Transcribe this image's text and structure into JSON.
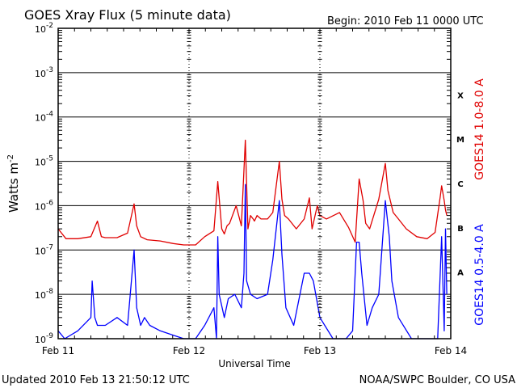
{
  "title": "GOES Xray Flux (5 minute data)",
  "begin_label": "Begin:  2010 Feb 11 0000 UTC",
  "updated_label": "Updated 2010 Feb 13 21:50:12 UTC",
  "credit_label": "NOAA/SWPC Boulder, CO USA",
  "colors": {
    "long_channel": "#e00000",
    "short_channel": "#0000ff",
    "axes": "#000000"
  },
  "chart_data": {
    "type": "line",
    "title": "GOES Xray Flux (5 minute data)",
    "xlabel": "Universal Time",
    "ylabel_base": "Watts m",
    "ylabel_sup": "-2",
    "yscale": "log",
    "ylim": [
      1e-09,
      0.01
    ],
    "xlim_days": [
      0,
      3
    ],
    "x_ticks": [
      {
        "day": 0,
        "label": "Feb 11"
      },
      {
        "day": 1,
        "label": "Feb 12"
      },
      {
        "day": 2,
        "label": "Feb 13"
      },
      {
        "day": 3,
        "label": "Feb 14"
      }
    ],
    "y_ticks": [
      {
        "exp": -9,
        "label_base": "10",
        "label_exp": "-9"
      },
      {
        "exp": -8,
        "label_base": "10",
        "label_exp": "-8"
      },
      {
        "exp": -7,
        "label_base": "10",
        "label_exp": "-7"
      },
      {
        "exp": -6,
        "label_base": "10",
        "label_exp": "-6"
      },
      {
        "exp": -5,
        "label_base": "10",
        "label_exp": "-5"
      },
      {
        "exp": -4,
        "label_base": "10",
        "label_exp": "-4"
      },
      {
        "exp": -3,
        "label_base": "10",
        "label_exp": "-3"
      },
      {
        "exp": -2,
        "label_base": "10",
        "label_exp": "-2"
      }
    ],
    "flare_classes": [
      {
        "label": "A",
        "exp": -8
      },
      {
        "label": "B",
        "exp": -7
      },
      {
        "label": "C",
        "exp": -6
      },
      {
        "label": "M",
        "exp": -5
      },
      {
        "label": "X",
        "exp": -4
      }
    ],
    "grid": true,
    "series": [
      {
        "name": "GOES14 1.0-8.0 A",
        "color": "#e00000",
        "x_days": [
          0,
          0.06,
          0.15,
          0.25,
          0.3,
          0.33,
          0.36,
          0.45,
          0.53,
          0.58,
          0.6,
          0.63,
          0.68,
          0.78,
          0.88,
          0.96,
          1.05,
          1.12,
          1.19,
          1.22,
          1.25,
          1.27,
          1.29,
          1.31,
          1.36,
          1.4,
          1.43,
          1.45,
          1.47,
          1.49,
          1.5,
          1.52,
          1.55,
          1.6,
          1.64,
          1.69,
          1.71,
          1.73,
          1.76,
          1.82,
          1.88,
          1.92,
          1.94,
          1.98,
          2.0,
          2.05,
          2.15,
          2.22,
          2.27,
          2.3,
          2.33,
          2.35,
          2.38,
          2.45,
          2.5,
          2.52,
          2.56,
          2.6,
          2.66,
          2.74,
          2.82,
          2.88,
          2.92,
          2.93,
          2.95,
          2.96,
          2.97
        ],
        "y": [
          3e-07,
          1.8e-07,
          1.8e-07,
          2e-07,
          4.5e-07,
          2e-07,
          1.9e-07,
          1.9e-07,
          2.4e-07,
          1.1e-06,
          3.5e-07,
          2e-07,
          1.7e-07,
          1.6e-07,
          1.4e-07,
          1.3e-07,
          1.3e-07,
          2e-07,
          2.7e-07,
          3.5e-06,
          3e-07,
          2.3e-07,
          3.5e-07,
          4e-07,
          1e-06,
          3.5e-07,
          3e-05,
          3e-07,
          6e-07,
          5e-07,
          4.5e-07,
          6e-07,
          5e-07,
          5e-07,
          7e-07,
          1e-05,
          1.4e-06,
          6e-07,
          5e-07,
          3e-07,
          5e-07,
          1.5e-06,
          3e-07,
          1e-06,
          6e-07,
          5e-07,
          7e-07,
          3.2e-07,
          1.5e-07,
          4e-06,
          1.3e-06,
          4e-07,
          3e-07,
          1.4e-06,
          9e-06,
          2.2e-06,
          7e-07,
          5e-07,
          3e-07,
          2e-07,
          1.8e-07,
          2.5e-07,
          1.6e-06,
          2.8e-06,
          1.3e-06,
          8e-07,
          6e-07
        ]
      },
      {
        "name": "GOES14 0.5-4.0 A",
        "color": "#0000ff",
        "x_days": [
          0,
          0.05,
          0.15,
          0.25,
          0.26,
          0.28,
          0.3,
          0.36,
          0.45,
          0.53,
          0.58,
          0.6,
          0.63,
          0.66,
          0.7,
          0.78,
          0.88,
          0.96,
          1.05,
          1.12,
          1.19,
          1.21,
          1.22,
          1.23,
          1.27,
          1.3,
          1.35,
          1.4,
          1.42,
          1.43,
          1.44,
          1.47,
          1.52,
          1.6,
          1.64,
          1.69,
          1.71,
          1.74,
          1.8,
          1.88,
          1.92,
          1.95,
          2.0,
          2.1,
          2.2,
          2.25,
          2.28,
          2.3,
          2.32,
          2.36,
          2.4,
          2.45,
          2.5,
          2.53,
          2.55,
          2.6,
          2.7,
          2.8,
          2.9,
          2.93,
          2.95,
          2.96,
          2.97
        ],
        "y": [
          1.5e-09,
          1e-09,
          1.5e-09,
          3e-09,
          2e-08,
          3e-09,
          2e-09,
          2e-09,
          3e-09,
          2e-09,
          1e-07,
          5e-09,
          2e-09,
          3e-09,
          2e-09,
          1.5e-09,
          1.2e-09,
          1e-09,
          1e-09,
          2e-09,
          5e-09,
          1e-09,
          2e-07,
          1e-08,
          3e-09,
          8e-09,
          1e-08,
          5e-09,
          3e-08,
          3e-06,
          2e-08,
          1e-08,
          8e-09,
          1e-08,
          6e-08,
          1.3e-06,
          8e-08,
          5e-09,
          2e-09,
          3e-08,
          3e-08,
          2e-08,
          3e-09,
          1e-09,
          1e-09,
          1.5e-09,
          1.5e-07,
          1.5e-07,
          3e-08,
          2e-09,
          5e-09,
          1e-08,
          1.3e-06,
          2e-07,
          2e-08,
          3e-09,
          1e-09,
          1e-09,
          1e-09,
          2e-07,
          1.5e-09,
          3e-07,
          1e-08
        ]
      }
    ]
  }
}
